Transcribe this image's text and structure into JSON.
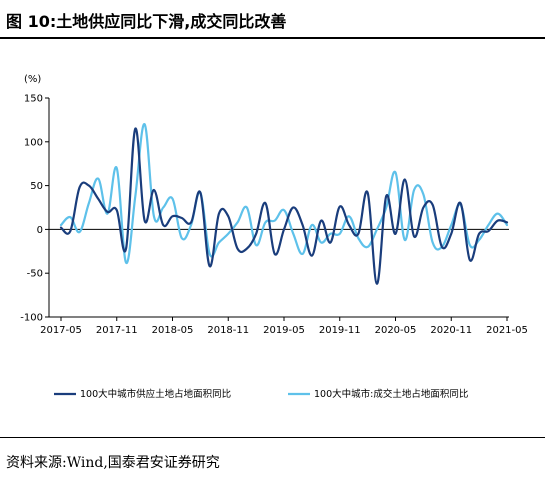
{
  "figure": {
    "title": "图 10:土地供应同比下滑,成交同比改善",
    "source": "资料来源:Wind,国泰君安证券研究"
  },
  "chart_data": {
    "type": "line",
    "title": "",
    "ylabel": "(%)",
    "xlabel": "",
    "ylim": [
      -100,
      150
    ],
    "yticks": [
      -100,
      -50,
      0,
      50,
      100,
      150
    ],
    "xticks": [
      "2017-05",
      "2017-11",
      "2018-05",
      "2018-11",
      "2019-05",
      "2019-11",
      "2020-05",
      "2020-11",
      "2021-05"
    ],
    "x": [
      "2017-05",
      "2017-06",
      "2017-07",
      "2017-08",
      "2017-09",
      "2017-10",
      "2017-11",
      "2017-12",
      "2018-01",
      "2018-02",
      "2018-03",
      "2018-04",
      "2018-05",
      "2018-06",
      "2018-07",
      "2018-08",
      "2018-09",
      "2018-10",
      "2018-11",
      "2018-12",
      "2019-01",
      "2019-02",
      "2019-03",
      "2019-04",
      "2019-05",
      "2019-06",
      "2019-07",
      "2019-08",
      "2019-09",
      "2019-10",
      "2019-11",
      "2019-12",
      "2020-01",
      "2020-02",
      "2020-03",
      "2020-04",
      "2020-05",
      "2020-06",
      "2020-07",
      "2020-08",
      "2020-09",
      "2020-10",
      "2020-11",
      "2020-12",
      "2021-01",
      "2021-02",
      "2021-03",
      "2021-04",
      "2021-05"
    ],
    "legend_position": "bottom",
    "grid": false,
    "series": [
      {
        "name": "100大中城市供应土地占地面积同比",
        "color": "#1a3d7c",
        "values": [
          2,
          -2,
          48,
          50,
          35,
          20,
          22,
          -22,
          115,
          10,
          45,
          5,
          15,
          13,
          8,
          42,
          -42,
          18,
          15,
          -22,
          -22,
          -5,
          30,
          -28,
          0,
          25,
          5,
          -30,
          10,
          -15,
          26,
          5,
          -5,
          42,
          -62,
          38,
          -5,
          57,
          -8,
          25,
          28,
          -20,
          -5,
          30,
          -35,
          -5,
          -2,
          10,
          8
        ]
      },
      {
        "name": "100大中城市:成交土地占地面积同比",
        "color": "#5ec1ea",
        "values": [
          5,
          14,
          -3,
          30,
          58,
          18,
          70,
          -38,
          38,
          120,
          15,
          25,
          35,
          -10,
          5,
          42,
          -28,
          -15,
          -5,
          8,
          25,
          -18,
          8,
          10,
          22,
          -5,
          -28,
          5,
          -15,
          -5,
          -5,
          15,
          -10,
          -20,
          0,
          25,
          65,
          -12,
          45,
          40,
          -15,
          -20,
          5,
          28,
          -18,
          -12,
          5,
          18,
          5
        ]
      }
    ]
  }
}
